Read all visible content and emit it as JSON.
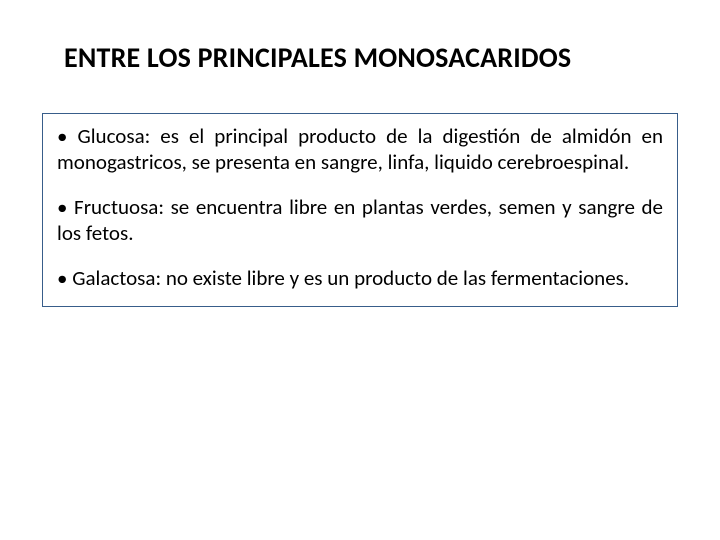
{
  "slide": {
    "title": "ENTRE LOS PRINCIPALES MONOSACARIDOS",
    "border_color": "#385d8a",
    "background_color": "#ffffff",
    "title_fontsize": 28,
    "body_fontsize": 21,
    "text_color": "#000000",
    "items": [
      "• Glucosa: es el principal producto de la digestión de almidón en monogastricos, se presenta en sangre, linfa, liquido cerebroespinal.",
      "• Fructuosa: se encuentra libre en plantas verdes, semen y sangre de los fetos.",
      "• Galactosa: no existe libre y es un producto de las fermentaciones."
    ]
  }
}
